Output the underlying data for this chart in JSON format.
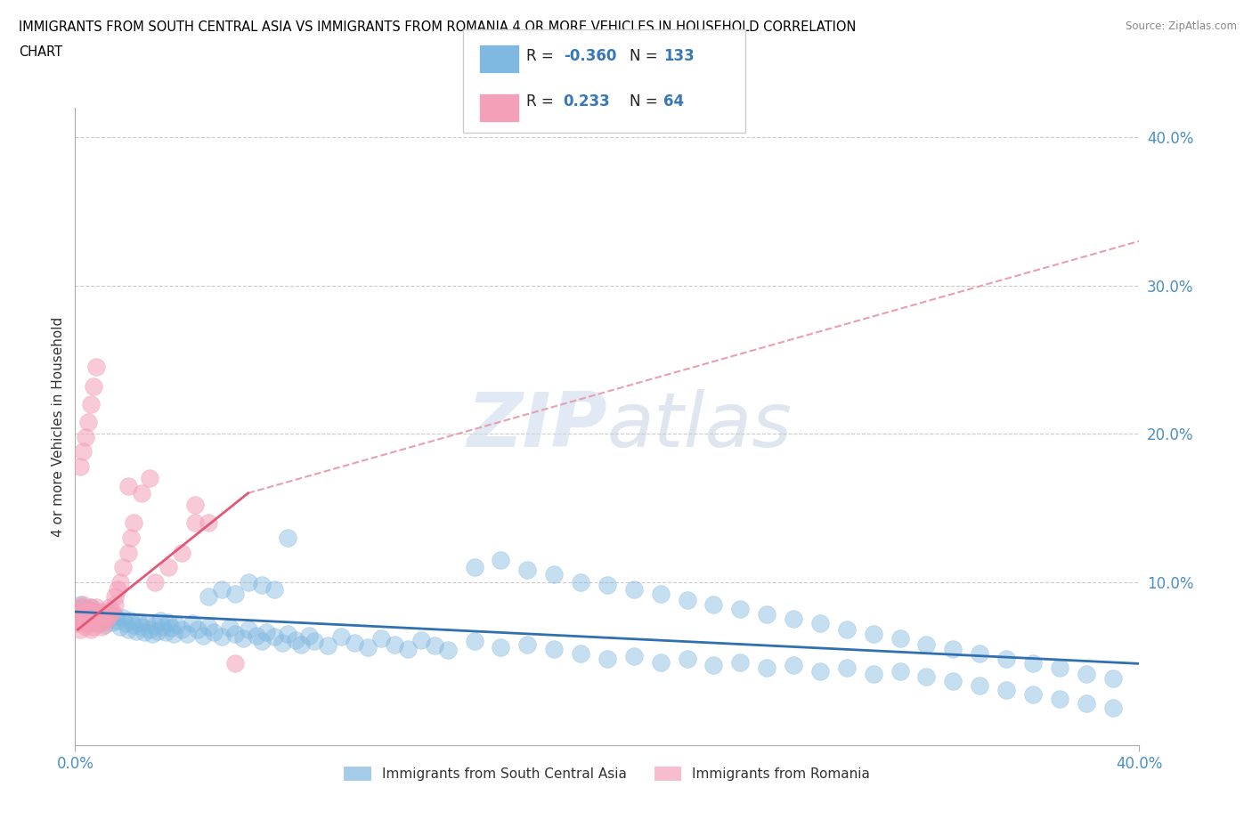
{
  "title_line1": "IMMIGRANTS FROM SOUTH CENTRAL ASIA VS IMMIGRANTS FROM ROMANIA 4 OR MORE VEHICLES IN HOUSEHOLD CORRELATION",
  "title_line2": "CHART",
  "source": "Source: ZipAtlas.com",
  "ylabel": "4 or more Vehicles in Household",
  "blue_color": "#7fb8e0",
  "pink_color": "#f4a0b8",
  "blue_line_color": "#3070b0",
  "pink_line_color": "#e05878",
  "pink_dash_color": "#e8a0b0",
  "grid_color": "#cccccc",
  "x_range": [
    0.0,
    0.4
  ],
  "y_range": [
    -0.01,
    0.42
  ],
  "watermark": "ZIPatlas",
  "blue_R": "-0.360",
  "blue_N": "133",
  "pink_R": "0.233",
  "pink_N": "64",
  "blue_line": {
    "x0": 0.0,
    "x1": 0.4,
    "y0": 0.08,
    "y1": 0.045
  },
  "pink_line_solid": {
    "x0": 0.001,
    "x1": 0.065,
    "y0": 0.068,
    "y1": 0.16
  },
  "pink_line_dash": {
    "x0": 0.065,
    "x1": 0.4,
    "y0": 0.16,
    "y1": 0.33
  },
  "blue_scatter_x": [
    0.001,
    0.002,
    0.002,
    0.003,
    0.003,
    0.004,
    0.004,
    0.005,
    0.005,
    0.006,
    0.006,
    0.007,
    0.007,
    0.008,
    0.008,
    0.009,
    0.01,
    0.01,
    0.011,
    0.012,
    0.013,
    0.014,
    0.015,
    0.016,
    0.017,
    0.018,
    0.019,
    0.02,
    0.021,
    0.022,
    0.023,
    0.024,
    0.025,
    0.026,
    0.027,
    0.028,
    0.029,
    0.03,
    0.031,
    0.032,
    0.033,
    0.034,
    0.035,
    0.036,
    0.037,
    0.038,
    0.04,
    0.042,
    0.044,
    0.046,
    0.048,
    0.05,
    0.052,
    0.055,
    0.058,
    0.06,
    0.063,
    0.065,
    0.068,
    0.07,
    0.072,
    0.075,
    0.078,
    0.08,
    0.083,
    0.085,
    0.088,
    0.09,
    0.095,
    0.1,
    0.105,
    0.11,
    0.115,
    0.12,
    0.125,
    0.13,
    0.135,
    0.14,
    0.15,
    0.16,
    0.17,
    0.18,
    0.19,
    0.2,
    0.21,
    0.22,
    0.23,
    0.24,
    0.25,
    0.26,
    0.27,
    0.28,
    0.29,
    0.3,
    0.31,
    0.32,
    0.33,
    0.34,
    0.35,
    0.36,
    0.37,
    0.38,
    0.39,
    0.15,
    0.16,
    0.17,
    0.18,
    0.19,
    0.2,
    0.21,
    0.22,
    0.23,
    0.24,
    0.25,
    0.26,
    0.27,
    0.28,
    0.29,
    0.3,
    0.31,
    0.32,
    0.33,
    0.34,
    0.35,
    0.36,
    0.37,
    0.38,
    0.39,
    0.05,
    0.055,
    0.06,
    0.065,
    0.07,
    0.075,
    0.08
  ],
  "blue_scatter_y": [
    0.082,
    0.079,
    0.085,
    0.078,
    0.083,
    0.08,
    0.075,
    0.082,
    0.076,
    0.079,
    0.083,
    0.077,
    0.073,
    0.08,
    0.076,
    0.072,
    0.078,
    0.074,
    0.071,
    0.075,
    0.079,
    0.073,
    0.077,
    0.074,
    0.07,
    0.076,
    0.072,
    0.068,
    0.074,
    0.071,
    0.067,
    0.073,
    0.07,
    0.066,
    0.072,
    0.068,
    0.065,
    0.071,
    0.067,
    0.074,
    0.07,
    0.066,
    0.073,
    0.069,
    0.065,
    0.071,
    0.068,
    0.065,
    0.072,
    0.068,
    0.064,
    0.07,
    0.066,
    0.063,
    0.069,
    0.065,
    0.062,
    0.068,
    0.064,
    0.06,
    0.066,
    0.063,
    0.059,
    0.065,
    0.061,
    0.058,
    0.064,
    0.06,
    0.057,
    0.063,
    0.059,
    0.056,
    0.062,
    0.058,
    0.055,
    0.061,
    0.057,
    0.054,
    0.11,
    0.115,
    0.108,
    0.105,
    0.1,
    0.098,
    0.095,
    0.092,
    0.088,
    0.085,
    0.082,
    0.078,
    0.075,
    0.072,
    0.068,
    0.065,
    0.062,
    0.058,
    0.055,
    0.052,
    0.048,
    0.045,
    0.042,
    0.038,
    0.035,
    0.06,
    0.056,
    0.058,
    0.055,
    0.052,
    0.048,
    0.05,
    0.046,
    0.048,
    0.044,
    0.046,
    0.042,
    0.044,
    0.04,
    0.042,
    0.038,
    0.04,
    0.036,
    0.033,
    0.03,
    0.027,
    0.024,
    0.021,
    0.018,
    0.015,
    0.09,
    0.095,
    0.092,
    0.1,
    0.098,
    0.095,
    0.13
  ],
  "pink_scatter_x": [
    0.001,
    0.001,
    0.001,
    0.002,
    0.002,
    0.002,
    0.002,
    0.003,
    0.003,
    0.003,
    0.003,
    0.004,
    0.004,
    0.004,
    0.005,
    0.005,
    0.005,
    0.006,
    0.006,
    0.006,
    0.006,
    0.007,
    0.007,
    0.007,
    0.008,
    0.008,
    0.008,
    0.009,
    0.009,
    0.01,
    0.01,
    0.01,
    0.011,
    0.011,
    0.012,
    0.012,
    0.013,
    0.013,
    0.014,
    0.015,
    0.015,
    0.016,
    0.017,
    0.018,
    0.02,
    0.021,
    0.022,
    0.025,
    0.028,
    0.03,
    0.035,
    0.04,
    0.045,
    0.05,
    0.06,
    0.002,
    0.003,
    0.004,
    0.005,
    0.006,
    0.007,
    0.008,
    0.02,
    0.045
  ],
  "pink_scatter_y": [
    0.072,
    0.075,
    0.08,
    0.068,
    0.075,
    0.08,
    0.083,
    0.072,
    0.076,
    0.08,
    0.085,
    0.07,
    0.075,
    0.08,
    0.072,
    0.077,
    0.082,
    0.068,
    0.073,
    0.078,
    0.083,
    0.07,
    0.075,
    0.08,
    0.073,
    0.078,
    0.083,
    0.072,
    0.077,
    0.07,
    0.075,
    0.08,
    0.073,
    0.078,
    0.075,
    0.08,
    0.078,
    0.083,
    0.08,
    0.085,
    0.09,
    0.095,
    0.1,
    0.11,
    0.12,
    0.13,
    0.14,
    0.16,
    0.17,
    0.1,
    0.11,
    0.12,
    0.14,
    0.14,
    0.045,
    0.178,
    0.188,
    0.198,
    0.208,
    0.22,
    0.232,
    0.245,
    0.165,
    0.152
  ]
}
